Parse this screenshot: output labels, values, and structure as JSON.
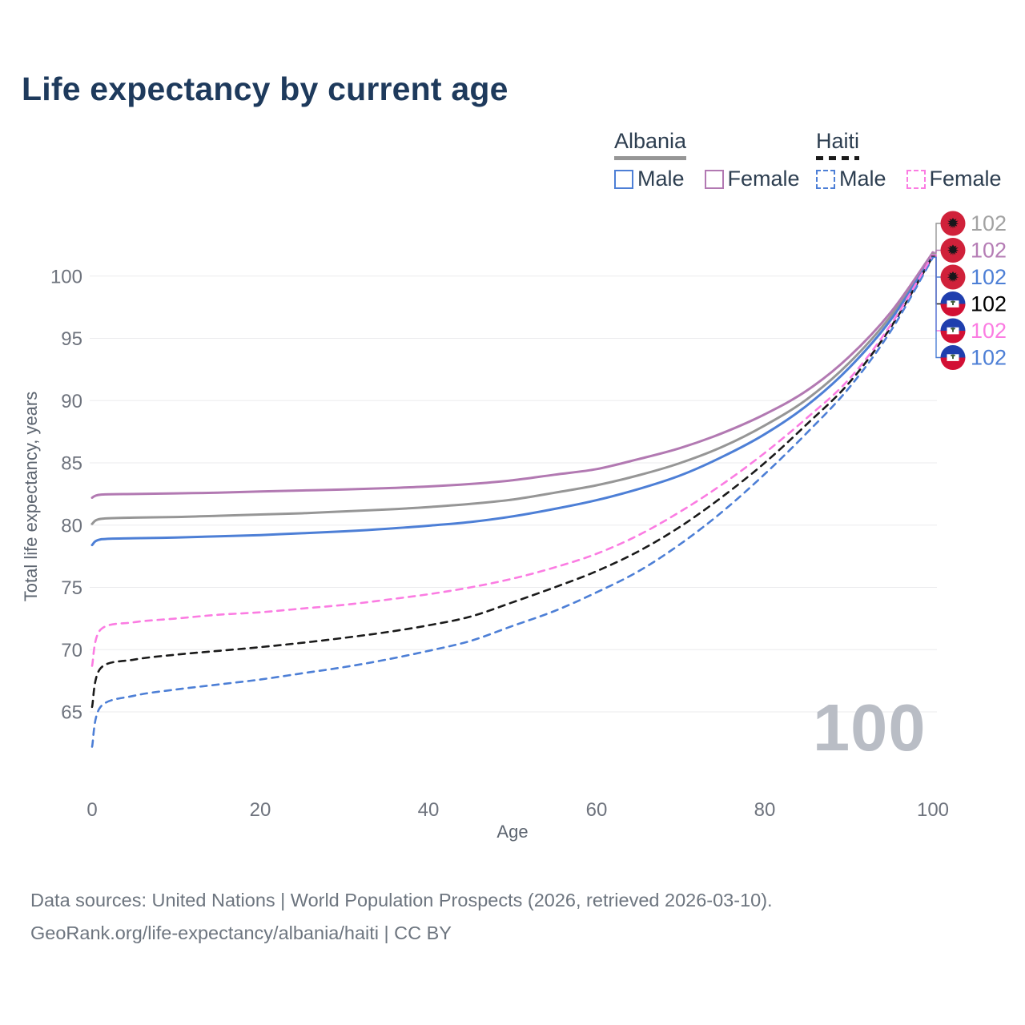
{
  "title": "Life expectancy by current age",
  "legend": {
    "albania": {
      "title": "Albania",
      "male": "Male",
      "female": "Female"
    },
    "haiti": {
      "title": "Haiti",
      "male": "Male",
      "female": "Female"
    }
  },
  "watermark": "100",
  "footer": {
    "line1": "Data sources: United Nations | World Population Prospects (2026, retrieved 2026-03-10).",
    "line2": "GeoRank.org/life-expectancy/albania/haiti | CC BY"
  },
  "colors": {
    "title_navy": "#1e3a5c",
    "gridline": "#ebebed",
    "tick_gray": "#6e737d",
    "watermark_gray": "#b9bdc5"
  },
  "flag_colors": {
    "albania_red": "#d0213a",
    "eagle_black": "#17171b",
    "haiti_blue": "#1f3eae",
    "haiti_red": "#d21034",
    "haiti_white": "#ffffff",
    "haiti_palm_green": "#44603f"
  },
  "chart_data": {
    "type": "line",
    "title": "Life expectancy by current age",
    "xlabel": "Age",
    "ylabel": "Total life expectancy, years",
    "xlim": [
      0,
      100
    ],
    "ylim": [
      62,
      103
    ],
    "xticks": [
      0,
      20,
      40,
      60,
      80,
      100
    ],
    "yticks": [
      65,
      70,
      75,
      80,
      85,
      90,
      95,
      100
    ],
    "grid": "horizontal",
    "legend_position": "top-right",
    "hovered_age": "100",
    "series": [
      {
        "key": "albania-both",
        "name": "Albania — Both sexes",
        "country": "albania",
        "sex": "both",
        "style": "solid",
        "color": "#969696",
        "label_color": "#a2a2a2",
        "end_label": "102",
        "points": [
          [
            0,
            80.1
          ],
          [
            1,
            80.5
          ],
          [
            5,
            80.6
          ],
          [
            10,
            80.65
          ],
          [
            15,
            80.75
          ],
          [
            20,
            80.85
          ],
          [
            25,
            80.95
          ],
          [
            30,
            81.1
          ],
          [
            35,
            81.25
          ],
          [
            40,
            81.45
          ],
          [
            45,
            81.7
          ],
          [
            50,
            82.05
          ],
          [
            55,
            82.6
          ],
          [
            60,
            83.2
          ],
          [
            65,
            84.0
          ],
          [
            70,
            85.0
          ],
          [
            75,
            86.3
          ],
          [
            80,
            88.0
          ],
          [
            85,
            90.1
          ],
          [
            90,
            93.0
          ],
          [
            95,
            96.8
          ],
          [
            100,
            101.8
          ]
        ]
      },
      {
        "key": "albania-female",
        "name": "Albania — Female",
        "country": "albania",
        "sex": "female",
        "style": "solid",
        "color": "#b279b2",
        "label_color": "#b57db5",
        "end_label": "102",
        "points": [
          [
            0,
            82.2
          ],
          [
            1,
            82.45
          ],
          [
            5,
            82.5
          ],
          [
            10,
            82.55
          ],
          [
            15,
            82.6
          ],
          [
            20,
            82.7
          ],
          [
            25,
            82.78
          ],
          [
            30,
            82.86
          ],
          [
            35,
            82.97
          ],
          [
            40,
            83.1
          ],
          [
            45,
            83.3
          ],
          [
            50,
            83.6
          ],
          [
            55,
            84.05
          ],
          [
            60,
            84.5
          ],
          [
            65,
            85.3
          ],
          [
            70,
            86.2
          ],
          [
            75,
            87.4
          ],
          [
            80,
            88.9
          ],
          [
            85,
            90.8
          ],
          [
            90,
            93.5
          ],
          [
            95,
            97.1
          ],
          [
            100,
            101.9
          ]
        ]
      },
      {
        "key": "albania-male",
        "name": "Albania — Male",
        "country": "albania",
        "sex": "male",
        "style": "solid",
        "color": "#4d7fd6",
        "label_color": "#4d7fd6",
        "end_label": "102",
        "points": [
          [
            0,
            78.4
          ],
          [
            1,
            78.85
          ],
          [
            5,
            78.95
          ],
          [
            10,
            79.0
          ],
          [
            15,
            79.1
          ],
          [
            20,
            79.2
          ],
          [
            25,
            79.35
          ],
          [
            30,
            79.5
          ],
          [
            35,
            79.7
          ],
          [
            40,
            79.95
          ],
          [
            45,
            80.25
          ],
          [
            50,
            80.7
          ],
          [
            55,
            81.3
          ],
          [
            60,
            82.0
          ],
          [
            65,
            82.9
          ],
          [
            70,
            84.0
          ],
          [
            75,
            85.5
          ],
          [
            80,
            87.3
          ],
          [
            85,
            89.6
          ],
          [
            90,
            92.6
          ],
          [
            95,
            96.5
          ],
          [
            100,
            101.7
          ]
        ]
      },
      {
        "key": "haiti-both",
        "name": "Haiti — Both sexes",
        "country": "haiti",
        "sex": "both",
        "style": "dashed",
        "color": "#1a1a1a",
        "label_color": "#000000",
        "end_label": "102",
        "points": [
          [
            0,
            65.4
          ],
          [
            1,
            68.5
          ],
          [
            5,
            69.2
          ],
          [
            10,
            69.6
          ],
          [
            15,
            69.9
          ],
          [
            20,
            70.2
          ],
          [
            25,
            70.55
          ],
          [
            30,
            70.95
          ],
          [
            35,
            71.4
          ],
          [
            40,
            71.95
          ],
          [
            45,
            72.65
          ],
          [
            50,
            73.8
          ],
          [
            55,
            75.0
          ],
          [
            60,
            76.3
          ],
          [
            65,
            77.9
          ],
          [
            70,
            79.9
          ],
          [
            75,
            82.3
          ],
          [
            80,
            85.0
          ],
          [
            85,
            88.1
          ],
          [
            90,
            91.4
          ],
          [
            95,
            95.9
          ],
          [
            100,
            101.6
          ]
        ]
      },
      {
        "key": "haiti-female",
        "name": "Haiti — Female",
        "country": "haiti",
        "sex": "female",
        "style": "dashed",
        "color": "#fb7ce2",
        "label_color": "#fb7ce2",
        "end_label": "102",
        "points": [
          [
            0,
            68.7
          ],
          [
            1,
            71.6
          ],
          [
            5,
            72.2
          ],
          [
            10,
            72.5
          ],
          [
            15,
            72.8
          ],
          [
            20,
            73.0
          ],
          [
            25,
            73.3
          ],
          [
            30,
            73.6
          ],
          [
            35,
            74.0
          ],
          [
            40,
            74.45
          ],
          [
            45,
            75.0
          ],
          [
            50,
            75.7
          ],
          [
            55,
            76.6
          ],
          [
            60,
            77.7
          ],
          [
            65,
            79.2
          ],
          [
            70,
            81.1
          ],
          [
            75,
            83.3
          ],
          [
            80,
            85.8
          ],
          [
            85,
            88.6
          ],
          [
            90,
            91.7
          ],
          [
            95,
            96.1
          ],
          [
            100,
            101.7
          ]
        ]
      },
      {
        "key": "haiti-male",
        "name": "Haiti — Male",
        "country": "haiti",
        "sex": "male",
        "style": "dashed",
        "color": "#4d7fd6",
        "label_color": "#4d7fd6",
        "end_label": "102",
        "points": [
          [
            0,
            62.2
          ],
          [
            1,
            65.4
          ],
          [
            5,
            66.3
          ],
          [
            10,
            66.8
          ],
          [
            15,
            67.2
          ],
          [
            20,
            67.6
          ],
          [
            25,
            68.1
          ],
          [
            30,
            68.6
          ],
          [
            35,
            69.2
          ],
          [
            40,
            69.9
          ],
          [
            45,
            70.7
          ],
          [
            50,
            71.9
          ],
          [
            55,
            73.1
          ],
          [
            60,
            74.6
          ],
          [
            65,
            76.3
          ],
          [
            70,
            78.5
          ],
          [
            75,
            81.1
          ],
          [
            80,
            84.1
          ],
          [
            85,
            87.4
          ],
          [
            90,
            91.0
          ],
          [
            95,
            95.6
          ],
          [
            100,
            101.5
          ]
        ]
      }
    ]
  }
}
